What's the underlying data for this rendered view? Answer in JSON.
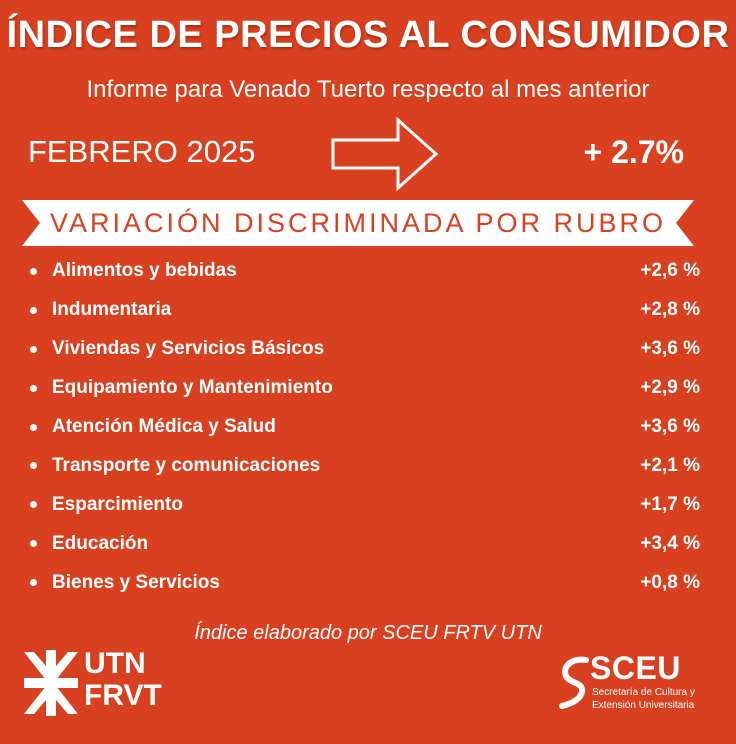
{
  "header": {
    "title": "ÍNDICE DE PRECIOS AL CONSUMIDOR",
    "subtitle": "Informe para Venado Tuerto respecto al mes anterior"
  },
  "summary": {
    "period": "FEBRERO 2025",
    "arrow_icon": "right-arrow-outline-icon",
    "total_variation": "+ 2.7%"
  },
  "banner": {
    "label": "VARIACIÓN DISCRIMINADA POR RUBRO"
  },
  "rubros": [
    {
      "name": "Alimentos y bebidas",
      "value": "+2,6 %"
    },
    {
      "name": "Indumentaria",
      "value": "+2,8 %"
    },
    {
      "name": "Viviendas y Servicios Básicos",
      "value": "+3,6 %"
    },
    {
      "name": "Equipamiento y Mantenimiento",
      "value": "+2,9 %"
    },
    {
      "name": "Atención Médica y Salud",
      "value": "+3,6 %"
    },
    {
      "name": "Transporte y comunicaciones",
      "value": "+2,1 %"
    },
    {
      "name": "Esparcimiento",
      "value": "+1,7 %"
    },
    {
      "name": "Educación",
      "value": "+3,4 %"
    },
    {
      "name": "Bienes y Servicios",
      "value": "+0,8 %"
    }
  ],
  "footer": {
    "note": "Índice elaborado por SCEU FRTV UTN",
    "utn_logo": {
      "line1": "UTN",
      "line2": "FRVT"
    },
    "sceu_logo": {
      "name": "SCEU",
      "subtitle": "Secretaría de Cultura y Extensión Universitaria"
    }
  },
  "colors": {
    "background": "#d9401f",
    "text": "#ffffff",
    "banner_bg": "#ffffff",
    "banner_text": "#d9401f"
  }
}
